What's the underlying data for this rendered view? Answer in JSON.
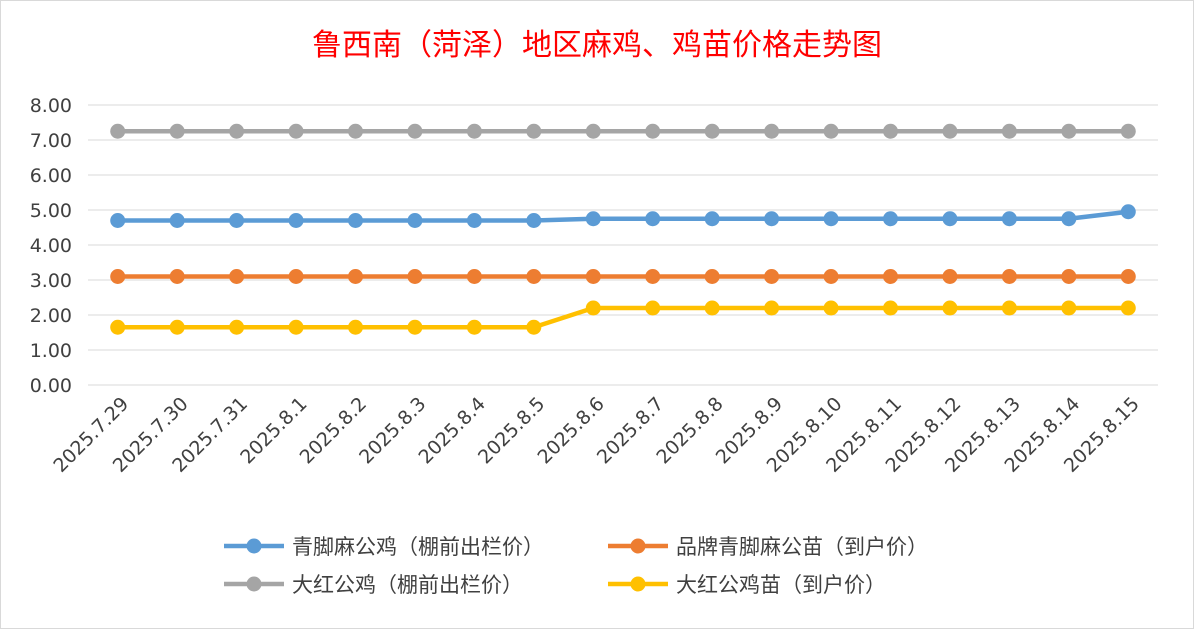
{
  "chart_data": {
    "type": "line",
    "title": "鲁西南（菏泽）地区麻鸡、鸡苗价格走势图",
    "xlabel": "",
    "ylabel": "",
    "ylim": [
      0,
      8
    ],
    "y_ticks": [
      "0.00",
      "1.00",
      "2.00",
      "3.00",
      "4.00",
      "5.00",
      "6.00",
      "7.00",
      "8.00"
    ],
    "categories": [
      "2025.7.29",
      "2025.7.30",
      "2025.7.31",
      "2025.8.1",
      "2025.8.2",
      "2025.8.3",
      "2025.8.4",
      "2025.8.5",
      "2025.8.6",
      "2025.8.7",
      "2025.8.8",
      "2025.8.9",
      "2025.8.10",
      "2025.8.11",
      "2025.8.12",
      "2025.8.13",
      "2025.8.14",
      "2025.8.15"
    ],
    "grid": true,
    "legend_position": "bottom",
    "series": [
      {
        "name": "青脚麻公鸡（棚前出栏价）",
        "color": "#5b9bd5",
        "values": [
          4.7,
          4.7,
          4.7,
          4.7,
          4.7,
          4.7,
          4.7,
          4.7,
          4.75,
          4.75,
          4.75,
          4.75,
          4.75,
          4.75,
          4.75,
          4.75,
          4.75,
          4.95
        ]
      },
      {
        "name": "品牌青脚麻公苗（到户价）",
        "color": "#ed7d31",
        "values": [
          3.1,
          3.1,
          3.1,
          3.1,
          3.1,
          3.1,
          3.1,
          3.1,
          3.1,
          3.1,
          3.1,
          3.1,
          3.1,
          3.1,
          3.1,
          3.1,
          3.1,
          3.1
        ]
      },
      {
        "name": "大红公鸡（棚前出栏价）",
        "color": "#a5a5a5",
        "values": [
          7.25,
          7.25,
          7.25,
          7.25,
          7.25,
          7.25,
          7.25,
          7.25,
          7.25,
          7.25,
          7.25,
          7.25,
          7.25,
          7.25,
          7.25,
          7.25,
          7.25,
          7.25
        ]
      },
      {
        "name": "大红公鸡苗（到户价）",
        "color": "#ffc000",
        "values": [
          1.65,
          1.65,
          1.65,
          1.65,
          1.65,
          1.65,
          1.65,
          1.65,
          2.2,
          2.2,
          2.2,
          2.2,
          2.2,
          2.2,
          2.2,
          2.2,
          2.2,
          2.2
        ]
      }
    ]
  }
}
